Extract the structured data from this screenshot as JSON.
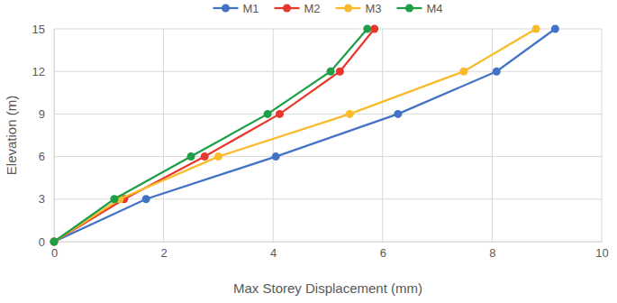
{
  "chart_data": {
    "type": "line",
    "x_label": "Max Storey Displacement (mm)",
    "y_label": "Elevation (m)",
    "series": [
      {
        "name": "M1",
        "color": "#4472c4",
        "x": [
          0,
          1.68,
          4.05,
          6.28,
          8.08,
          9.15
        ],
        "values": [
          0,
          3,
          6,
          9,
          12,
          15
        ]
      },
      {
        "name": "M2",
        "color": "#e8382d",
        "x": [
          0,
          1.28,
          2.75,
          4.12,
          5.22,
          5.85
        ],
        "values": [
          0,
          3,
          6,
          9,
          12,
          15
        ]
      },
      {
        "name": "M3",
        "color": "#f9bb2b",
        "x": [
          0,
          1.2,
          3.0,
          5.4,
          7.48,
          8.8
        ],
        "values": [
          0,
          3,
          6,
          9,
          12,
          15
        ]
      },
      {
        "name": "M4",
        "color": "#1e9e47",
        "x": [
          0,
          1.1,
          2.5,
          3.9,
          5.05,
          5.72
        ],
        "values": [
          0,
          3,
          6,
          9,
          12,
          15
        ]
      }
    ],
    "xlim": [
      0,
      10
    ],
    "xticks": [
      0,
      2,
      4,
      6,
      8,
      10
    ],
    "ylim": [
      0,
      15
    ],
    "yticks": [
      0,
      3,
      6,
      9,
      12,
      15
    ],
    "grid": true,
    "legend": "top",
    "marker": "circle",
    "line_style": "solid"
  }
}
